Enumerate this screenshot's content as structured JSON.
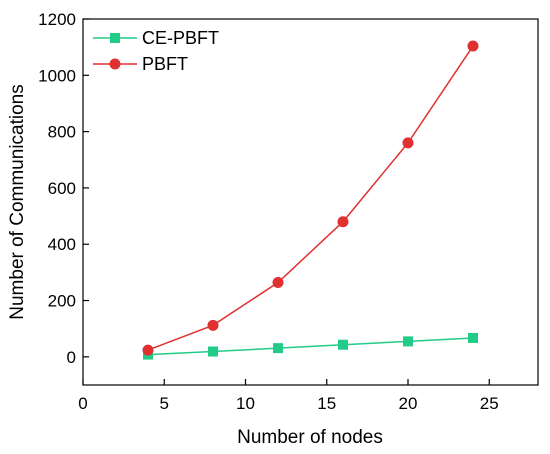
{
  "chart_data": {
    "type": "line",
    "title": "",
    "xlabel": "Number of nodes",
    "ylabel": "Number of Communications",
    "xlim": [
      0,
      28
    ],
    "ylim": [
      -100,
      1200
    ],
    "xticks": [
      0,
      5,
      10,
      15,
      20,
      25
    ],
    "yticks": [
      0,
      200,
      400,
      600,
      800,
      1000,
      1200
    ],
    "grid": false,
    "legend_position": "top-left",
    "series": [
      {
        "name": "CE-PBFT",
        "color": "#22cc88",
        "marker": "square",
        "x": [
          4,
          8,
          12,
          16,
          20,
          24
        ],
        "y": [
          8,
          19,
          31,
          43,
          55,
          67
        ]
      },
      {
        "name": "PBFT",
        "color": "#e03030",
        "marker": "circle",
        "x": [
          4,
          8,
          12,
          16,
          20,
          24
        ],
        "y": [
          24,
          112,
          264,
          480,
          760,
          1104
        ]
      }
    ]
  }
}
